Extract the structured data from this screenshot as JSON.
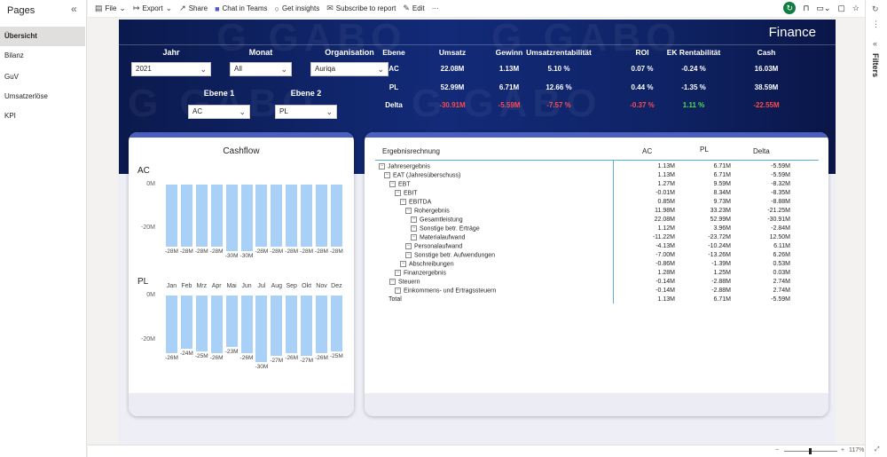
{
  "pages": {
    "title": "Pages",
    "items": [
      "Übersicht",
      "Bilanz",
      "GuV",
      "Umsatzerlöse",
      "KPI"
    ]
  },
  "toolbar": {
    "file": "File",
    "export": "Export",
    "share": "Share",
    "chat": "Chat in Teams",
    "insights": "Get insights",
    "subscribe": "Subscribe to report",
    "edit": "Edit",
    "more": "···"
  },
  "filters_pane": {
    "label": "Filters"
  },
  "banner": {
    "title": "Finance",
    "filters": {
      "jahr": {
        "label": "Jahr",
        "value": "2021"
      },
      "monat": {
        "label": "Monat",
        "value": "All"
      },
      "organisation": {
        "label": "Organisation",
        "value": "Auriqa"
      },
      "ebene1": {
        "label": "Ebene 1",
        "value": "AC"
      },
      "ebene2": {
        "label": "Ebene 2",
        "value": "PL"
      }
    },
    "kpi": {
      "headers": [
        "Ebene",
        "Umsatz",
        "Gewinn",
        "Umsatzrentabilität",
        "ROI",
        "EK Rentabilität",
        "Cash"
      ],
      "rows": [
        {
          "cells": [
            "AC",
            "22.08M",
            "1.13M",
            "5.10 %",
            "0.07 %",
            "-0.24 %",
            "16.03M"
          ],
          "tone": [
            "",
            "",
            "",
            "",
            "",
            "",
            ""
          ]
        },
        {
          "cells": [
            "PL",
            "52.99M",
            "6.71M",
            "12.66 %",
            "0.44 %",
            "-1.35 %",
            "38.59M"
          ],
          "tone": [
            "",
            "",
            "",
            "",
            "",
            "",
            ""
          ]
        },
        {
          "cells": [
            "Delta",
            "-30.91M",
            "-5.59M",
            "-7.57 %",
            "-0.37 %",
            "1.11 %",
            "-22.55M"
          ],
          "tone": [
            "",
            "neg",
            "neg",
            "neg",
            "neg",
            "pos",
            "neg"
          ]
        }
      ]
    }
  },
  "cashflow": {
    "title": "Cashflow",
    "months": [
      "Jan",
      "Feb",
      "Mrz",
      "Apr",
      "Mai",
      "Jun",
      "Jul",
      "Aug",
      "Sep",
      "Okt",
      "Nov",
      "Dez"
    ],
    "ac": {
      "label": "AC",
      "ticks": [
        "0M",
        "-20M"
      ],
      "values": [
        -28,
        -28,
        -28,
        -28,
        -30,
        -30,
        -28,
        -28,
        -28,
        -28,
        -28,
        -28
      ],
      "labels": [
        "-28M",
        "-28M",
        "-28M",
        "-28M",
        "-30M",
        "-30M",
        "-28M",
        "-28M",
        "-28M",
        "-28M",
        "-28M",
        "-28M"
      ]
    },
    "pl": {
      "label": "PL",
      "ticks": [
        "0M",
        "-20M"
      ],
      "values": [
        -26,
        -24,
        -25,
        -26,
        -23,
        -26,
        -30,
        -27,
        -26,
        -27,
        -26,
        -25
      ],
      "labels": [
        "-26M",
        "-24M",
        "-25M",
        "-26M",
        "-23M",
        "-26M",
        "-30M",
        "-27M",
        "-26M",
        "-27M",
        "-26M",
        "-25M"
      ]
    }
  },
  "matrix": {
    "headers": {
      "label": "Ergebnisrechnung",
      "ac": "AC",
      "pl": "PL",
      "delta": "Delta"
    },
    "rows": [
      {
        "level": 0,
        "exp": true,
        "label": "Jahresergebnis",
        "ac": "1.13M",
        "pl": "6.71M",
        "delta": "-5.59M"
      },
      {
        "level": 1,
        "exp": true,
        "label": "EAT (Jahresüberschuss)",
        "ac": "1.13M",
        "pl": "6.71M",
        "delta": "-5.59M"
      },
      {
        "level": 2,
        "exp": true,
        "label": "EBT",
        "ac": "1.27M",
        "pl": "9.59M",
        "delta": "-8.32M"
      },
      {
        "level": 3,
        "exp": true,
        "label": "EBIT",
        "ac": "-0.01M",
        "pl": "8.34M",
        "delta": "-8.35M"
      },
      {
        "level": 4,
        "exp": true,
        "label": "EBITDA",
        "ac": "0.85M",
        "pl": "9.73M",
        "delta": "-8.88M"
      },
      {
        "level": 5,
        "exp": true,
        "label": "Rohergebnis",
        "ac": "11.98M",
        "pl": "33.23M",
        "delta": "-21.25M"
      },
      {
        "level": 6,
        "exp": true,
        "label": "Gesamtleistung",
        "ac": "22.08M",
        "pl": "52.99M",
        "delta": "-30.91M"
      },
      {
        "level": 6,
        "exp": true,
        "label": "Sonstige betr. Erträge",
        "ac": "1.12M",
        "pl": "3.96M",
        "delta": "-2.84M"
      },
      {
        "level": 6,
        "exp": true,
        "label": "Materialaufwand",
        "ac": "-11.22M",
        "pl": "-23.72M",
        "delta": "12.50M"
      },
      {
        "level": 5,
        "exp": true,
        "label": "Personalaufwand",
        "ac": "-4.13M",
        "pl": "-10.24M",
        "delta": "6.11M"
      },
      {
        "level": 5,
        "exp": true,
        "label": "Sonstige betr. Aufwendungen",
        "ac": "-7.00M",
        "pl": "-13.26M",
        "delta": "6.26M"
      },
      {
        "level": 4,
        "exp": true,
        "label": "Abschreibungen",
        "ac": "-0.86M",
        "pl": "-1.39M",
        "delta": "0.53M"
      },
      {
        "level": 3,
        "exp": true,
        "label": "Finanzergebnis",
        "ac": "1.28M",
        "pl": "1.25M",
        "delta": "0.03M"
      },
      {
        "level": 2,
        "exp": true,
        "label": "Steuern",
        "ac": "-0.14M",
        "pl": "-2.88M",
        "delta": "2.74M"
      },
      {
        "level": 3,
        "exp": true,
        "label": "Einkommens- und Ertragssteuern",
        "ac": "-0.14M",
        "pl": "-2.88M",
        "delta": "2.74M"
      },
      {
        "level": 0,
        "exp": false,
        "label": "Total",
        "ac": "1.13M",
        "pl": "6.71M",
        "delta": "-5.59M"
      }
    ]
  },
  "status": {
    "zoom": "117%"
  },
  "colors": {
    "banner": "#122a78",
    "bar": "#a9d1f7",
    "negative": "#ff4a4a",
    "positive": "#49e04a",
    "accent_line": "#5ab0d8"
  },
  "chart_data": [
    {
      "type": "bar",
      "ylabel": "",
      "categories": [
        "Jan",
        "Feb",
        "Mrz",
        "Apr",
        "Mai",
        "Jun",
        "Jul",
        "Aug",
        "Sep",
        "Okt",
        "Nov",
        "Dez"
      ],
      "values": [
        -28,
        -28,
        -28,
        -28,
        -30,
        -30,
        -28,
        -28,
        -28,
        -28,
        -28,
        -28
      ],
      "ylim": [
        -30,
        0
      ]
    },
    {
      "type": "bar",
      "ylabel": "",
      "categories": [
        "Jan",
        "Feb",
        "Mrz",
        "Apr",
        "Mai",
        "Jun",
        "Jul",
        "Aug",
        "Sep",
        "Okt",
        "Nov",
        "Dez"
      ],
      "values": [
        -26,
        -24,
        -25,
        -26,
        -23,
        -26,
        -30,
        -27,
        -26,
        -27,
        -26,
        -25
      ],
      "ylim": [
        -30,
        0
      ]
    }
  ]
}
